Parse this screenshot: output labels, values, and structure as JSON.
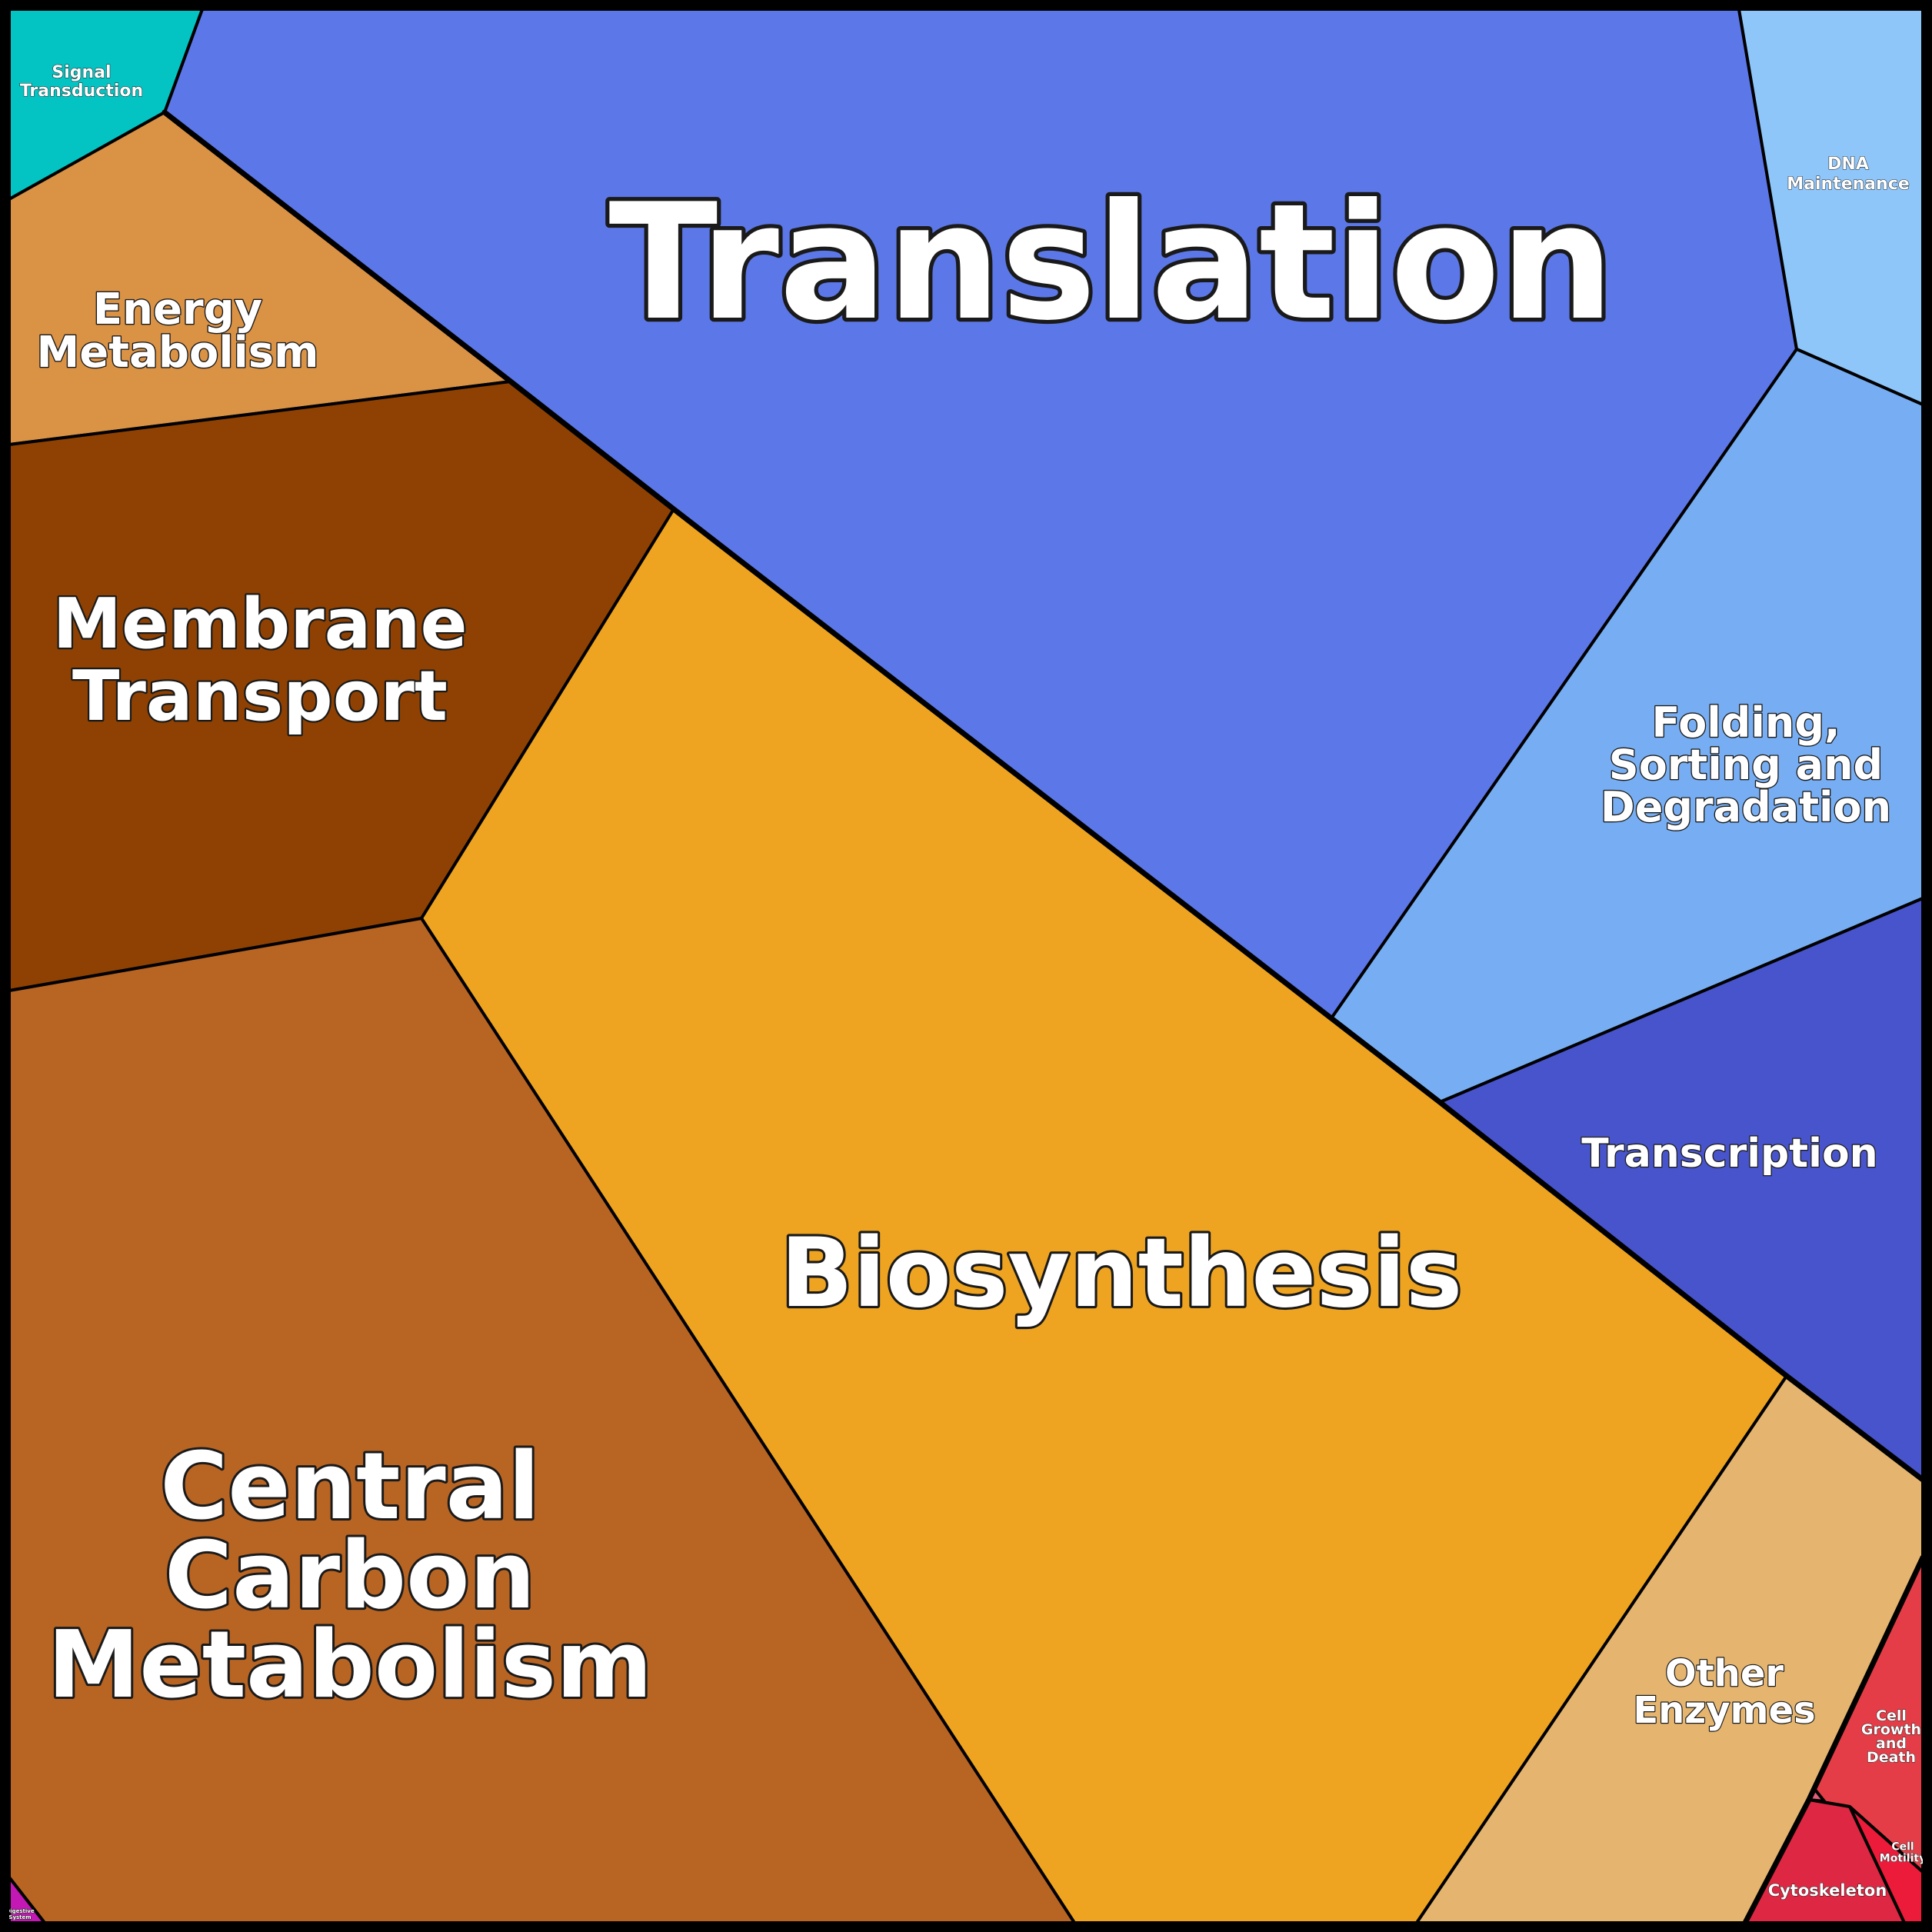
{
  "diagram": {
    "type": "voronoi-treemap",
    "cells": [
      {
        "key": "translation",
        "lines": [
          "Translation"
        ],
        "color": "#5c77e7"
      },
      {
        "key": "dna_maintenance",
        "lines": [
          "DNA",
          "Maintenance"
        ],
        "color": "#8fc6f9"
      },
      {
        "key": "folding",
        "lines": [
          "Folding,",
          "Sorting and",
          "Degradation"
        ],
        "color": "#77aef3"
      },
      {
        "key": "transcription",
        "lines": [
          "Transcription"
        ],
        "color": "#4854cc"
      },
      {
        "key": "signal",
        "lines": [
          "Signal",
          "Transduction"
        ],
        "color": "#03c4c2"
      },
      {
        "key": "energy",
        "lines": [
          "Energy",
          "Metabolism"
        ],
        "color": "#da9245"
      },
      {
        "key": "membrane",
        "lines": [
          "Membrane",
          "Transport"
        ],
        "color": "#8e4102"
      },
      {
        "key": "biosynthesis",
        "lines": [
          "Biosynthesis"
        ],
        "color": "#eea420"
      },
      {
        "key": "central_carbon",
        "lines": [
          "Central",
          "Carbon",
          "Metabolism"
        ],
        "color": "#b86423"
      },
      {
        "key": "other_enzymes",
        "lines": [
          "Other",
          "Enzymes"
        ],
        "color": "#e5b56f"
      },
      {
        "key": "cell_growth",
        "lines": [
          "Cell",
          "Growth",
          "and",
          "Death"
        ],
        "color": "#e53d47"
      },
      {
        "key": "cell_motility",
        "lines": [
          "Cell",
          "Motility"
        ],
        "color": "#ec1b3a"
      },
      {
        "key": "cytoskeleton",
        "lines": [
          "Cytoskeleton"
        ],
        "color": "#de2743"
      },
      {
        "key": "digestive",
        "lines": [
          "Digestive",
          "System"
        ],
        "color": "#c318b4"
      },
      {
        "key": "tiny_sliver",
        "lines": [],
        "color": "#e25d7a"
      }
    ]
  }
}
